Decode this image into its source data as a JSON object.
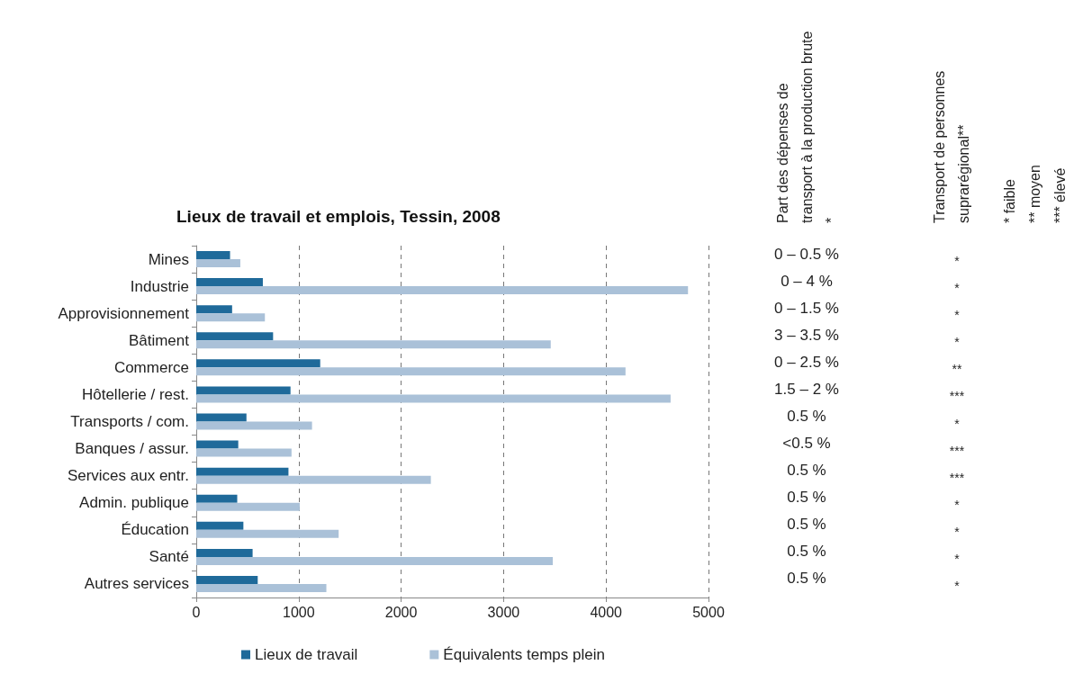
{
  "chart_data": {
    "type": "bar",
    "orientation": "horizontal",
    "title": "Lieux de travail et emplois, Tessin, 2008",
    "categories": [
      "Mines",
      "Industrie",
      "Approvisionnement",
      "Bâtiment",
      "Commerce",
      "Hôtellerie / rest.",
      "Transports / com.",
      "Banques / assur.",
      "Services aux entr.",
      "Admin. publique",
      "Éducation",
      "Santé",
      "Autres services"
    ],
    "series": [
      {
        "name": "Lieux de travail",
        "color": "#1f6a9a",
        "values": [
          330,
          650,
          350,
          750,
          1210,
          920,
          490,
          410,
          900,
          400,
          460,
          550,
          600
        ]
      },
      {
        "name": "Équivalents temps plein",
        "color": "#aac1d8",
        "values": [
          430,
          4800,
          670,
          3460,
          4190,
          4630,
          1130,
          930,
          2290,
          1010,
          1390,
          3480,
          1270
        ]
      }
    ],
    "xlim": [
      0,
      5000
    ],
    "xticks": [
      0,
      1000,
      2000,
      3000,
      4000,
      5000
    ],
    "grid": "x",
    "legend": "bottom",
    "annotations": [
      "Part des dépenses de transport à la production brute *",
      "Transport de personnes suprarégional**",
      "* faible",
      "** moyen",
      "*** élevé",
      "0 – 0.5 %",
      "0 – 4 %",
      "0 – 1.5 %",
      "3 – 3.5 %",
      "0 – 2.5 %",
      "1.5 – 2 %",
      "0.5 %",
      "<0.5 %",
      "0.5 %",
      "0.5 %",
      "0.5 %",
      "0.5 %",
      "0.5 %",
      "*",
      "*",
      "*",
      "*",
      "**",
      "***",
      "*",
      "***",
      "***",
      "*",
      "*",
      "*",
      "*"
    ]
  }
}
